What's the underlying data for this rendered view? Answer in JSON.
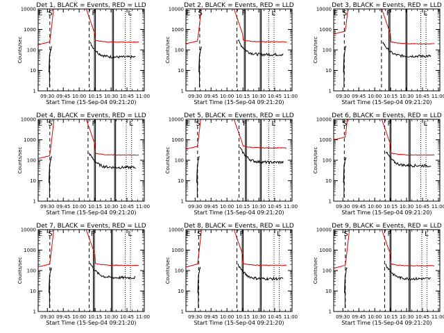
{
  "chart_data": [
    {
      "type": "line",
      "det": 1,
      "title": "Det 1, BLACK = Events, RED = LLD"
    },
    {
      "type": "line",
      "det": 2,
      "title": "Det 2, BLACK = Events, RED = LLD"
    },
    {
      "type": "line",
      "det": 3,
      "title": "Det 3, BLACK = Events, RED = LLD"
    },
    {
      "type": "line",
      "det": 4,
      "title": "Det 4, BLACK = Events, RED = LLD"
    },
    {
      "type": "line",
      "det": 5,
      "title": "Det 5, BLACK = Events, RED = LLD"
    },
    {
      "type": "line",
      "det": 6,
      "title": "Det 6, BLACK = Events, RED = LLD"
    },
    {
      "type": "line",
      "det": 7,
      "title": "Det 7, BLACK = Events, RED = LLD"
    },
    {
      "type": "line",
      "det": 8,
      "title": "Det 8, BLACK = Events, RED = LLD"
    },
    {
      "type": "line",
      "det": 9,
      "title": "Det 9, BLACK = Events, RED = LLD"
    }
  ],
  "common": {
    "ylabel": "Counts/sec",
    "xlabel": "Start Time (15-Sep-04 09:21:20)",
    "yscale": "log",
    "ylim": [
      1,
      10000
    ],
    "ytick_labels": [
      "1",
      "10",
      "100",
      "1000",
      "10000"
    ],
    "xlim_minutes": [
      0,
      100
    ],
    "xticks": [
      {
        "label": "09:30",
        "min": 8.67
      },
      {
        "label": "09:45",
        "min": 23.67
      },
      {
        "label": "10:00",
        "min": 38.67
      },
      {
        "label": "10:15",
        "min": 53.67
      },
      {
        "label": "10:30",
        "min": 68.67
      },
      {
        "label": "10:45",
        "min": 83.67
      },
      {
        "label": "11:00",
        "min": 98.67
      }
    ],
    "markers": {
      "E": 2,
      "S": 11,
      "F": 53,
      "L": 87
    },
    "colors": {
      "events": "#000000",
      "lld": "#dd0000"
    }
  },
  "variants": [
    {
      "lld_base": 180,
      "lld_post": 240,
      "ev_post": 45,
      "dash1": 11,
      "dash2": 48,
      "solid": [
        53,
        54,
        70,
        71
      ],
      "dots": [
        82,
        87
      ]
    },
    {
      "lld_base": 200,
      "lld_post": 250,
      "ev_post": 60,
      "dash1": 13,
      "dash2": 48,
      "solid": [
        55,
        56,
        70,
        71
      ],
      "dots": [
        78,
        83
      ]
    },
    {
      "lld_base": 600,
      "lld_post": 200,
      "ev_post": 50,
      "dash1": 10,
      "dash2": 45,
      "solid": [
        52,
        53,
        68,
        69
      ],
      "dots": [
        82,
        87
      ]
    },
    {
      "lld_base": 120,
      "lld_post": 180,
      "ev_post": 45,
      "dash1": 11,
      "dash2": 47,
      "solid": [
        53,
        54,
        72,
        73
      ],
      "dots": [
        83,
        88
      ]
    },
    {
      "lld_base": 350,
      "lld_post": 400,
      "ev_post": 80,
      "dash1": 11,
      "dash2": 50,
      "solid": [
        56,
        57,
        70,
        71
      ],
      "dots": [
        78,
        83
      ]
    },
    {
      "lld_base": 1000,
      "lld_post": 180,
      "ev_post": 55,
      "dash1": 10,
      "dash2": 48,
      "solid": [
        53,
        54,
        71,
        72
      ],
      "dots": [
        82,
        87
      ]
    },
    {
      "lld_base": 150,
      "lld_post": 180,
      "ev_post": 45,
      "dash1": 11,
      "dash2": 48,
      "solid": [
        52,
        53,
        69,
        70
      ],
      "dots": [
        82,
        87
      ]
    },
    {
      "lld_base": 150,
      "lld_post": 180,
      "ev_post": 40,
      "dash1": 12,
      "dash2": 48,
      "solid": [
        53,
        54,
        70,
        71
      ],
      "dots": [
        83,
        88
      ]
    },
    {
      "lld_base": 130,
      "lld_post": 170,
      "ev_post": 40,
      "dash1": 11,
      "dash2": 48,
      "solid": [
        53,
        54,
        71,
        72
      ],
      "dots": [
        83,
        88
      ]
    }
  ]
}
